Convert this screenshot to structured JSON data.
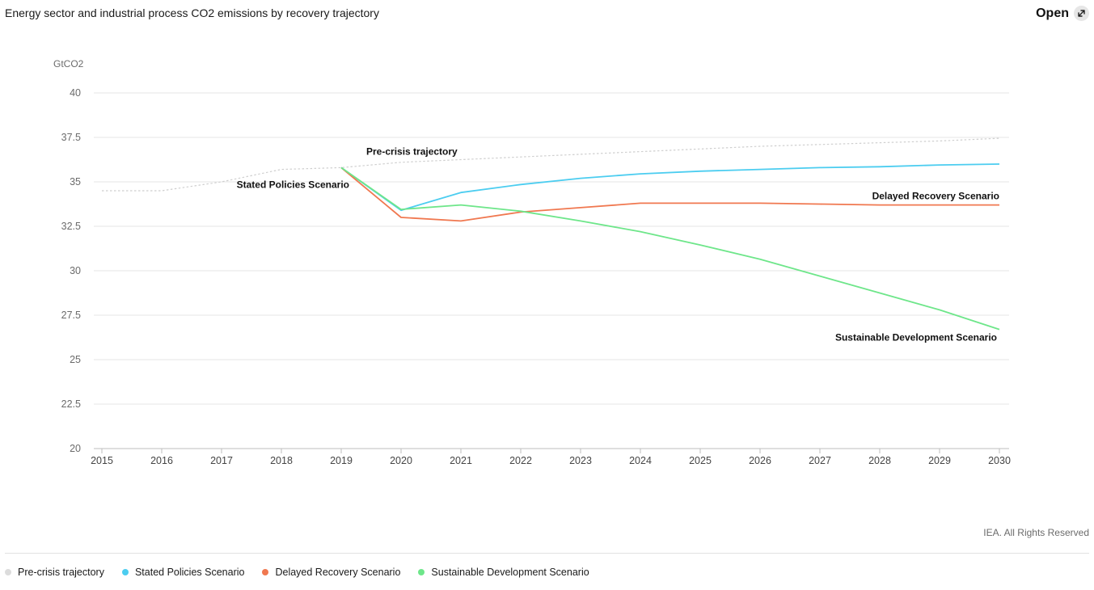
{
  "header": {
    "title": "Energy sector and industrial process CO2 emissions by recovery trajectory",
    "open_label": "Open",
    "open_icon": "expand-arrow-icon"
  },
  "footer": {
    "copyright": "IEA. All Rights Reserved"
  },
  "legend": [
    {
      "label": "Pre-crisis trajectory",
      "color": "#dcdcdc"
    },
    {
      "label": "Stated Policies Scenario",
      "color": "#4ccdf0"
    },
    {
      "label": "Delayed Recovery Scenario",
      "color": "#f07850"
    },
    {
      "label": "Sustainable Development Scenario",
      "color": "#6ee68a"
    }
  ],
  "chart_data": {
    "type": "line",
    "title": "Energy sector and industrial process CO2 emissions by recovery trajectory",
    "xlabel": "",
    "ylabel": "GtCO2",
    "x": [
      "2015",
      "2016",
      "2017",
      "2018",
      "2019",
      "2020",
      "2021",
      "2022",
      "2023",
      "2024",
      "2025",
      "2026",
      "2027",
      "2028",
      "2029",
      "2030"
    ],
    "ylim": [
      20,
      40
    ],
    "yticks": [
      "20",
      "22.5",
      "25",
      "27.5",
      "30",
      "32.5",
      "35",
      "37.5",
      "40"
    ],
    "grid": true,
    "series": [
      {
        "name": "Pre-crisis trajectory",
        "color": "#cfcfcf",
        "dashed": true,
        "x": [
          2015,
          2016,
          2017,
          2018,
          2019,
          2020,
          2021,
          2022,
          2023,
          2024,
          2025,
          2026,
          2027,
          2028,
          2029,
          2030
        ],
        "values": [
          34.5,
          34.5,
          35.0,
          35.7,
          35.8,
          36.1,
          36.25,
          36.4,
          36.55,
          36.7,
          36.85,
          37.0,
          37.1,
          37.2,
          37.3,
          37.45
        ]
      },
      {
        "name": "Stated Policies Scenario",
        "color": "#4ccdf0",
        "x": [
          2019,
          2020,
          2021,
          2022,
          2023,
          2024,
          2025,
          2026,
          2027,
          2028,
          2029,
          2030
        ],
        "values": [
          35.8,
          33.4,
          34.4,
          34.85,
          35.2,
          35.45,
          35.6,
          35.7,
          35.8,
          35.85,
          35.95,
          36.0
        ]
      },
      {
        "name": "Delayed Recovery Scenario",
        "color": "#f07850",
        "x": [
          2019,
          2020,
          2021,
          2022,
          2023,
          2024,
          2025,
          2026,
          2027,
          2028,
          2029,
          2030
        ],
        "values": [
          35.8,
          33.0,
          32.8,
          33.3,
          33.55,
          33.8,
          33.8,
          33.8,
          33.75,
          33.7,
          33.7,
          33.7
        ]
      },
      {
        "name": "Sustainable Development Scenario",
        "color": "#6ee68a",
        "x": [
          2019,
          2020,
          2021,
          2022,
          2023,
          2024,
          2025,
          2026,
          2027,
          2028,
          2029,
          2030
        ],
        "values": [
          35.8,
          33.45,
          33.7,
          33.35,
          32.8,
          32.2,
          31.45,
          30.65,
          29.7,
          28.75,
          27.8,
          26.7
        ]
      }
    ],
    "annotations": [
      {
        "text": "Pre-crisis trajectory",
        "series": 0
      },
      {
        "text": "Stated Policies Scenario",
        "series": 1
      },
      {
        "text": "Delayed Recovery Scenario",
        "series": 2
      },
      {
        "text": "Sustainable Development Scenario",
        "series": 3
      }
    ]
  }
}
